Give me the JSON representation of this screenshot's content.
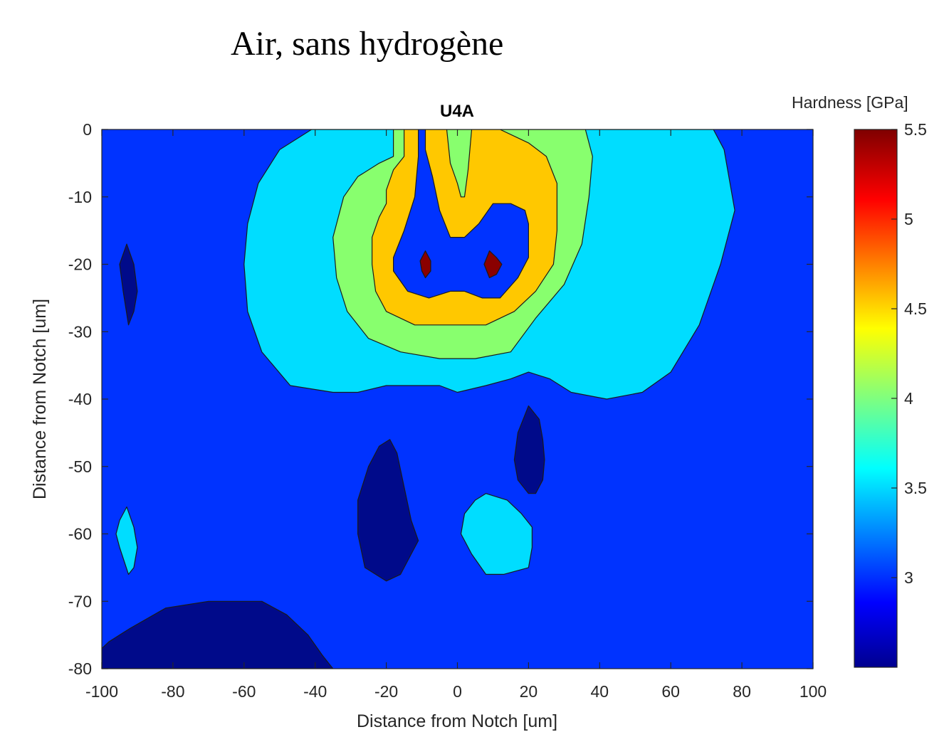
{
  "slide_title": "Air, sans hydrogène",
  "colors": {
    "level_2_8": "#000a8a",
    "level_3_0": "#0033ff",
    "level_3_4": "#00ddff",
    "level_3_9": "#88ff6e",
    "level_4_5": "#ffc800",
    "level_5_0": "#ff2400",
    "level_5_4": "#8a0000"
  },
  "chart_data": {
    "type": "contour",
    "title": "U4A",
    "xlabel": "Distance from Notch [um]",
    "ylabel": "Distance from Notch [um]",
    "xlim": [
      -100,
      100
    ],
    "ylim": [
      -80,
      0
    ],
    "xticks": [
      -100,
      -80,
      -60,
      -40,
      -20,
      0,
      20,
      40,
      60,
      80,
      100
    ],
    "yticks": [
      0,
      -10,
      -20,
      -30,
      -40,
      -50,
      -60,
      -70,
      -80
    ],
    "grid": false,
    "colorbar": {
      "label": "Hardness [GPa]",
      "colormap": "jet",
      "range": [
        2.5,
        5.5
      ],
      "ticks": [
        3,
        3.5,
        4,
        4.5,
        5,
        5.5
      ]
    },
    "background_level": 3.0,
    "regions": [
      {
        "level": 3.4,
        "points": [
          [
            -41,
            0
          ],
          [
            -50,
            -3
          ],
          [
            -56,
            -8
          ],
          [
            -59,
            -14
          ],
          [
            -60,
            -20
          ],
          [
            -59,
            -27
          ],
          [
            -55,
            -33
          ],
          [
            -47,
            -38
          ],
          [
            -35,
            -39
          ],
          [
            -28,
            -39
          ],
          [
            -20,
            -38
          ],
          [
            -12,
            -38
          ],
          [
            -5,
            -38
          ],
          [
            0,
            -39
          ],
          [
            8,
            -38
          ],
          [
            15,
            -37
          ],
          [
            20,
            -36
          ],
          [
            26,
            -37
          ],
          [
            32,
            -39
          ],
          [
            42,
            -40
          ],
          [
            52,
            -39
          ],
          [
            60,
            -36
          ],
          [
            68,
            -29
          ],
          [
            74,
            -20
          ],
          [
            78,
            -12
          ],
          [
            75,
            -3
          ],
          [
            72,
            0
          ]
        ]
      },
      {
        "level": 3.9,
        "points": [
          [
            -18,
            0
          ],
          [
            -18,
            -4
          ],
          [
            -22,
            -5
          ],
          [
            -28,
            -7
          ],
          [
            -32,
            -10
          ],
          [
            -35,
            -16
          ],
          [
            -34,
            -22
          ],
          [
            -31,
            -27
          ],
          [
            -25,
            -31
          ],
          [
            -16,
            -33
          ],
          [
            -5,
            -34
          ],
          [
            5,
            -34
          ],
          [
            15,
            -33
          ],
          [
            22,
            -28
          ],
          [
            30,
            -23
          ],
          [
            35,
            -17
          ],
          [
            37,
            -10
          ],
          [
            38,
            -4
          ],
          [
            36,
            0
          ]
        ]
      },
      {
        "level": 4.5,
        "points": [
          [
            -15,
            0
          ],
          [
            -15,
            -4
          ],
          [
            -18,
            -6
          ],
          [
            -20,
            -9
          ],
          [
            -20,
            -11
          ],
          [
            -22,
            -13
          ],
          [
            -24,
            -16
          ],
          [
            -24,
            -20
          ],
          [
            -23,
            -24
          ],
          [
            -20,
            -27
          ],
          [
            -12,
            -29
          ],
          [
            -2,
            -29
          ],
          [
            8,
            -29
          ],
          [
            16,
            -27
          ],
          [
            22,
            -24
          ],
          [
            27,
            -20
          ],
          [
            28,
            -15
          ],
          [
            28,
            -8
          ],
          [
            25,
            -4
          ],
          [
            20,
            -2
          ],
          [
            12,
            0
          ]
        ]
      },
      {
        "level": 3.9,
        "points": [
          [
            -3,
            0
          ],
          [
            -2,
            -5
          ],
          [
            0,
            -8
          ],
          [
            1,
            -10
          ],
          [
            2,
            -10
          ],
          [
            3,
            -6
          ],
          [
            4,
            0
          ]
        ]
      },
      {
        "level": 5.0,
        "points": [
          [
            -11,
            0
          ],
          [
            -11,
            -4
          ],
          [
            -12,
            -10
          ],
          [
            -15,
            -15
          ],
          [
            -18,
            -19
          ],
          [
            -18,
            -21
          ],
          [
            -14,
            -24
          ],
          [
            -8,
            -25
          ],
          [
            -2,
            -24
          ],
          [
            2,
            -24
          ],
          [
            7,
            -25
          ],
          [
            12,
            -25
          ],
          [
            17,
            -22
          ],
          [
            20,
            -19
          ],
          [
            20,
            -14
          ],
          [
            19,
            -12
          ],
          [
            15,
            -11
          ],
          [
            10,
            -11
          ],
          [
            6,
            -14
          ],
          [
            2,
            -16
          ],
          [
            -2,
            -16
          ],
          [
            -5,
            -12
          ],
          [
            -7,
            -7
          ],
          [
            -9,
            -3
          ],
          [
            -9,
            0
          ]
        ]
      },
      {
        "level": 5.4,
        "points": [
          [
            -9,
            -18
          ],
          [
            -7.5,
            -19.5
          ],
          [
            -7.5,
            -21
          ],
          [
            -9,
            -22
          ],
          [
            -10,
            -21
          ],
          [
            -10.5,
            -19.5
          ]
        ]
      },
      {
        "level": 5.4,
        "points": [
          [
            9,
            -18
          ],
          [
            11,
            -19
          ],
          [
            12.5,
            -20
          ],
          [
            11,
            -21.5
          ],
          [
            9,
            -22
          ],
          [
            7.5,
            -20
          ]
        ]
      },
      {
        "level": 2.8,
        "points": [
          [
            -93,
            -17
          ],
          [
            -91,
            -20
          ],
          [
            -90,
            -24
          ],
          [
            -91,
            -27
          ],
          [
            -92.5,
            -29
          ],
          [
            -94,
            -24
          ],
          [
            -95,
            -20
          ]
        ]
      },
      {
        "level": 2.8,
        "points": [
          [
            -19,
            -46
          ],
          [
            -17,
            -48
          ],
          [
            -15,
            -53
          ],
          [
            -13,
            -58
          ],
          [
            -11,
            -61
          ],
          [
            -13,
            -63
          ],
          [
            -16,
            -66
          ],
          [
            -20,
            -67
          ],
          [
            -26,
            -65
          ],
          [
            -28,
            -60
          ],
          [
            -28,
            -55
          ],
          [
            -25,
            -50
          ],
          [
            -22,
            -47
          ]
        ]
      },
      {
        "level": 2.8,
        "points": [
          [
            20,
            -41
          ],
          [
            23,
            -43
          ],
          [
            24,
            -46
          ],
          [
            24.5,
            -49
          ],
          [
            24,
            -52
          ],
          [
            22,
            -54
          ],
          [
            20,
            -54
          ],
          [
            17,
            -52
          ],
          [
            16,
            -49
          ],
          [
            17,
            -45
          ]
        ]
      },
      {
        "level": 3.4,
        "points": [
          [
            -93,
            -56
          ],
          [
            -91,
            -59
          ],
          [
            -90,
            -62
          ],
          [
            -91,
            -65
          ],
          [
            -92.5,
            -66
          ],
          [
            -95,
            -62
          ],
          [
            -96,
            -60
          ],
          [
            -95,
            -58
          ]
        ]
      },
      {
        "level": 3.4,
        "points": [
          [
            8,
            -54
          ],
          [
            14,
            -55
          ],
          [
            18,
            -57
          ],
          [
            21,
            -59
          ],
          [
            21,
            -62
          ],
          [
            20,
            -65
          ],
          [
            13,
            -66
          ],
          [
            8,
            -66
          ],
          [
            4,
            -63
          ],
          [
            1,
            -60
          ],
          [
            2,
            -57
          ],
          [
            5,
            -55
          ]
        ]
      },
      {
        "level": 2.8,
        "points": [
          [
            -100,
            -80
          ],
          [
            -100,
            -77
          ],
          [
            -98,
            -76
          ],
          [
            -92,
            -74
          ],
          [
            -82,
            -71
          ],
          [
            -70,
            -70
          ],
          [
            -62,
            -70
          ],
          [
            -55,
            -70
          ],
          [
            -48,
            -72
          ],
          [
            -42,
            -75
          ],
          [
            -38,
            -78
          ],
          [
            -35,
            -80
          ]
        ]
      }
    ]
  }
}
